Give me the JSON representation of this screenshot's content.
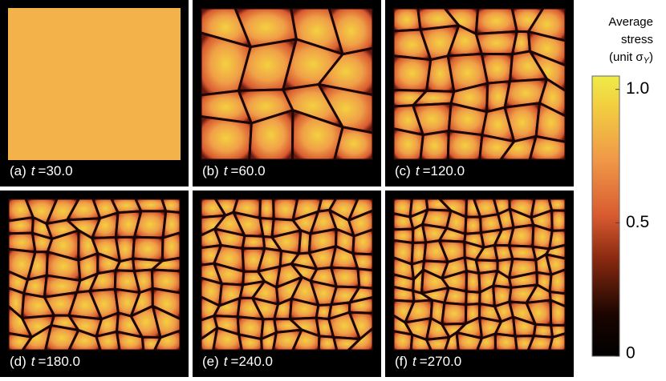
{
  "panels": [
    {
      "label": "(a)",
      "var": "t",
      "time": "=30.0"
    },
    {
      "label": "(b)",
      "var": "t",
      "time": "=60.0"
    },
    {
      "label": "(c)",
      "var": "t",
      "time": "=120.0"
    },
    {
      "label": "(d)",
      "var": "t",
      "time": "=180.0"
    },
    {
      "label": "(e)",
      "var": "t",
      "time": "=240.0"
    },
    {
      "label": "(f)",
      "var": "t",
      "time": "=270.0"
    }
  ],
  "colorbar": {
    "title": [
      "Average",
      "stress",
      "(unit σ"
    ],
    "title_sub": "Y",
    "title_close": ")",
    "lim": [
      0,
      1.05
    ],
    "ticks": [
      {
        "value": 1,
        "label": "1.0"
      },
      0.5,
      0
    ]
  }
}
